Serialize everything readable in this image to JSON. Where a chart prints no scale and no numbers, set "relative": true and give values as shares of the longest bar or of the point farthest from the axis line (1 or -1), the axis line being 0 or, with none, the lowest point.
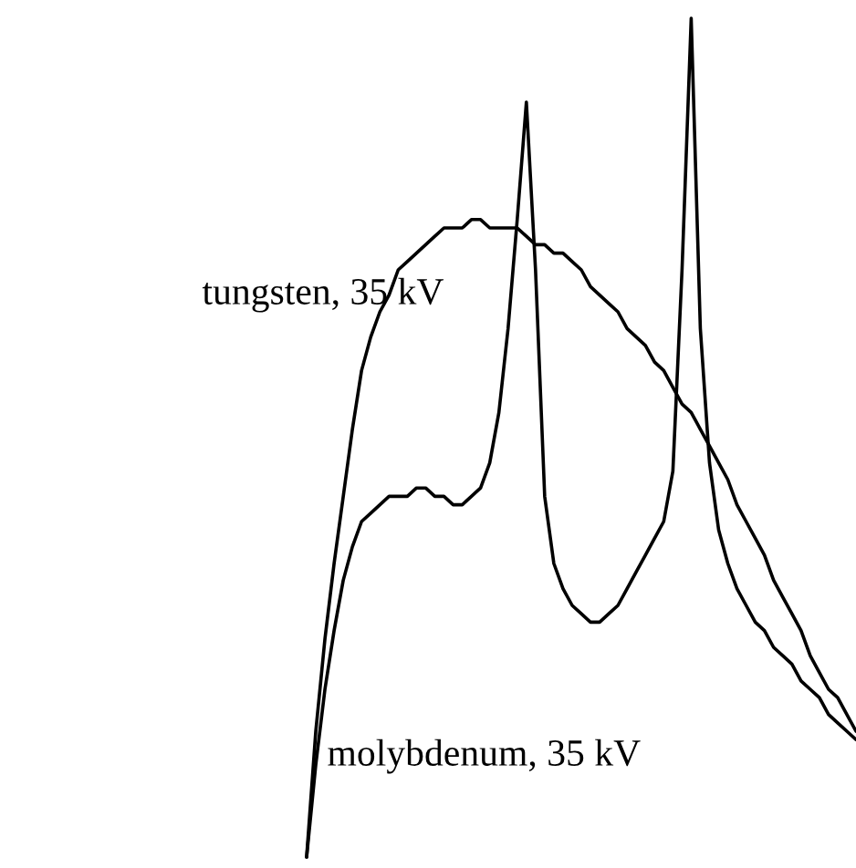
{
  "chart_data": {
    "type": "line",
    "relative": true,
    "categories": [
      null,
      null,
      null,
      null,
      null,
      null,
      null,
      null,
      null,
      null,
      null,
      null,
      null,
      null,
      null,
      null,
      null,
      null,
      null,
      null,
      null,
      null,
      null,
      null,
      null,
      null,
      null,
      null,
      null,
      null,
      null,
      null,
      null,
      null,
      null,
      null,
      null,
      null,
      null,
      null,
      null,
      null,
      null,
      null,
      null,
      null,
      null,
      null,
      null,
      null,
      null,
      null,
      null,
      null,
      null,
      null,
      null,
      null,
      null,
      null,
      null
    ],
    "series": [
      {
        "name": "tungsten, 35 kV",
        "color": "#000000",
        "values": [
          0,
          0.15,
          0.26,
          0.35,
          0.43,
          0.51,
          0.58,
          0.62,
          0.65,
          0.67,
          0.7,
          0.71,
          0.72,
          0.73,
          0.74,
          0.75,
          0.75,
          0.75,
          0.76,
          0.76,
          0.75,
          0.75,
          0.75,
          0.75,
          0.74,
          0.73,
          0.73,
          0.72,
          0.72,
          0.71,
          0.7,
          0.68,
          0.67,
          0.66,
          0.65,
          0.63,
          0.62,
          0.61,
          0.59,
          0.58,
          0.56,
          0.54,
          0.53,
          0.51,
          0.49,
          0.47,
          0.45,
          0.42,
          0.4,
          0.38,
          0.36,
          0.33,
          0.31,
          0.29,
          0.27,
          0.24,
          0.22,
          0.2,
          0.19,
          0.17,
          0.15
        ]
      },
      {
        "name": "molybdenum, 35 kV",
        "color": "#000000",
        "values": [
          0,
          0.11,
          0.2,
          0.27,
          0.33,
          0.37,
          0.4,
          0.41,
          0.42,
          0.43,
          0.43,
          0.43,
          0.44,
          0.44,
          0.43,
          0.43,
          0.42,
          0.42,
          0.43,
          0.44,
          0.47,
          0.53,
          0.63,
          0.76,
          0.9,
          0.7,
          0.43,
          0.35,
          0.32,
          0.3,
          0.29,
          0.28,
          0.28,
          0.29,
          0.3,
          0.32,
          0.34,
          0.36,
          0.38,
          0.4,
          0.46,
          0.7,
          1,
          0.63,
          0.47,
          0.39,
          0.35,
          0.32,
          0.3,
          0.28,
          0.27,
          0.25,
          0.24,
          0.23,
          0.21,
          0.2,
          0.19,
          0.17,
          0.16,
          0.15,
          0.14
        ]
      }
    ],
    "legend": false,
    "marker": "none",
    "line_style": "solid"
  }
}
